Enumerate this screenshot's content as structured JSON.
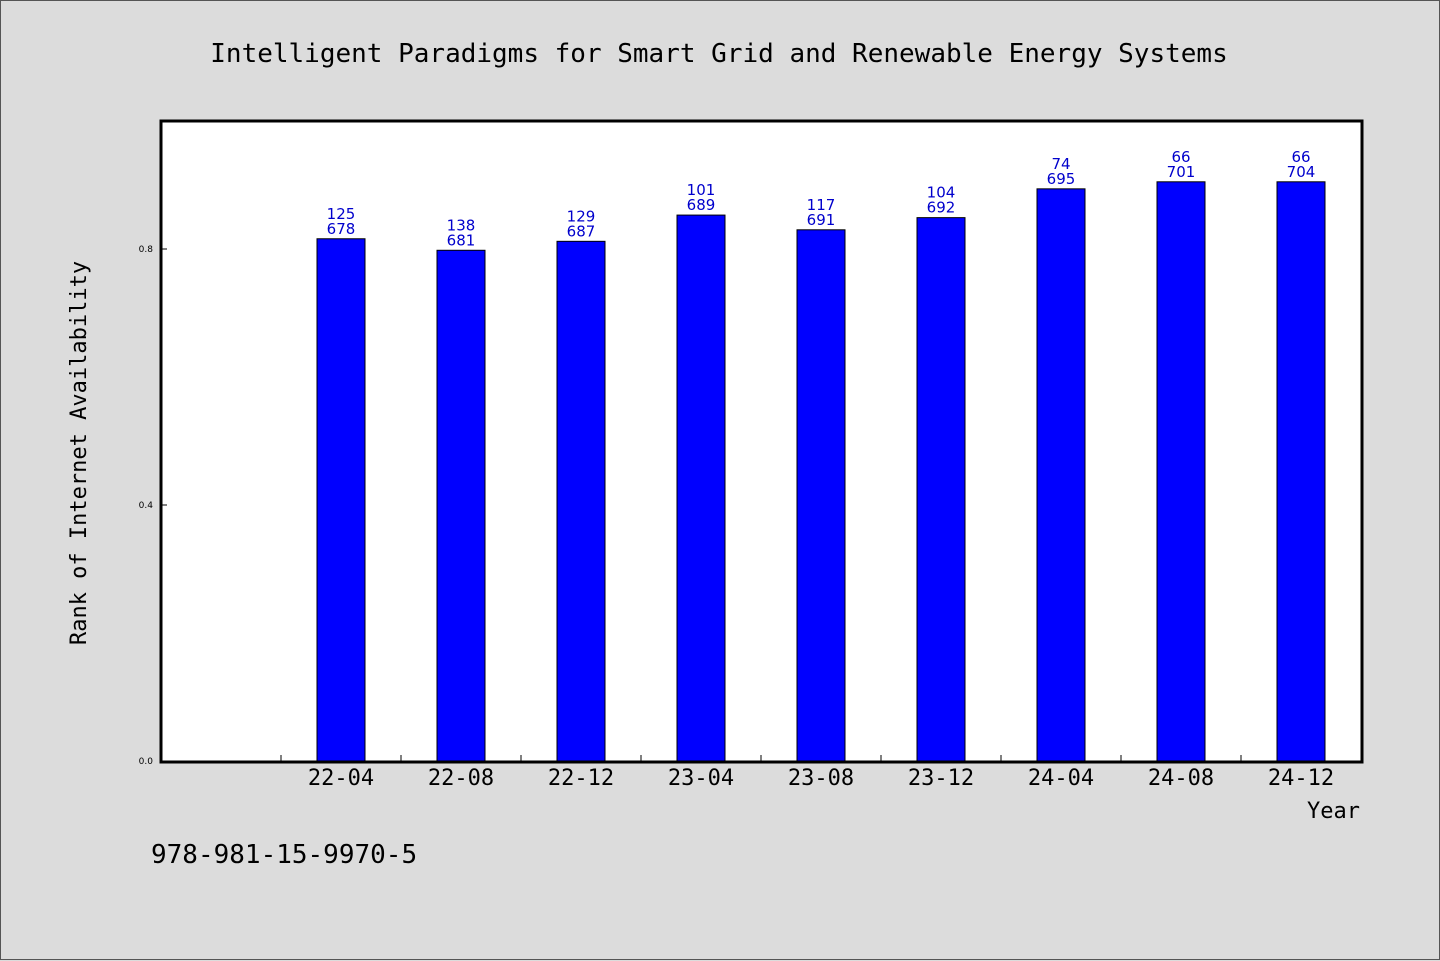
{
  "chart_data": {
    "type": "bar",
    "title": "Intelligent Paradigms for Smart Grid and Renewable Energy Systems",
    "xlabel": "Year",
    "ylabel": "Rank of Internet Availability",
    "ylim": [
      0,
      1.0
    ],
    "yticks": [
      0.0,
      0.4,
      0.8
    ],
    "ytick_labels": [
      "0.0",
      "0.4",
      "0.8"
    ],
    "grid": false,
    "bar_color": "#0000ff",
    "label_color": "#0000cc",
    "categories": [
      "22-04",
      "22-08",
      "22-12",
      "23-04",
      "23-08",
      "23-12",
      "24-04",
      "24-08",
      "24-12"
    ],
    "values": [
      0.816,
      0.798,
      0.812,
      0.853,
      0.83,
      0.849,
      0.894,
      0.905,
      0.905
    ],
    "rank_labels": [
      "125",
      "138",
      "129",
      "101",
      "117",
      "104",
      "74",
      "66",
      "66"
    ],
    "total_labels": [
      "678",
      "681",
      "687",
      "689",
      "691",
      "692",
      "695",
      "701",
      "704"
    ]
  },
  "footer": {
    "isbn": "978-981-15-9970-5"
  },
  "colors": {
    "background": "#dcdcdc",
    "plot_background": "#ffffff"
  }
}
